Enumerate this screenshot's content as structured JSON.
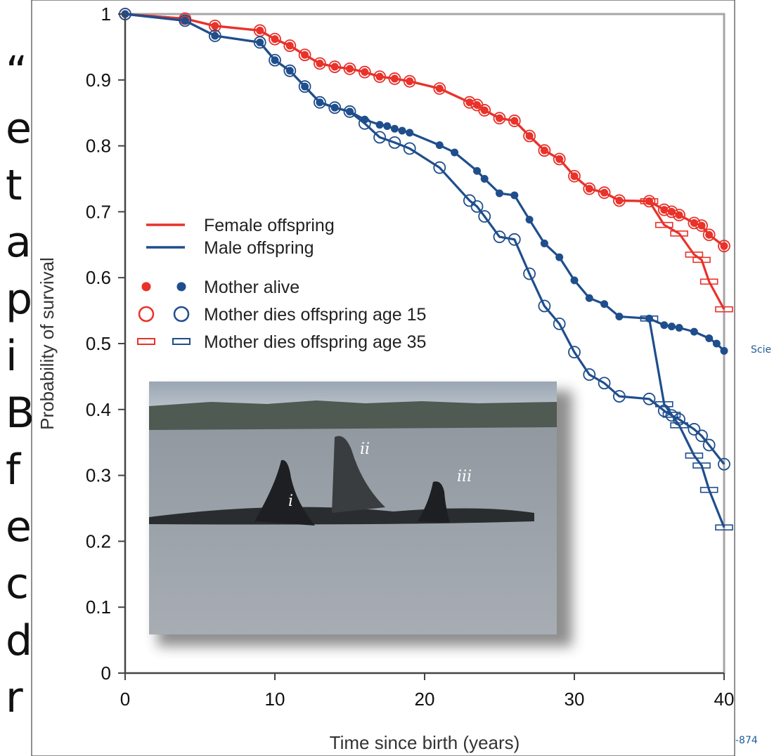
{
  "background": {
    "letters": [
      "“",
      "e",
      "t",
      "a",
      "p",
      "i",
      "B",
      "f",
      "e",
      "c",
      "d",
      "r"
    ],
    "side_note_top": "Scie",
    "side_note_bottom": "-874"
  },
  "colors": {
    "female": "#e8322a",
    "male": "#1f4e8c",
    "frame": "#a6a6a6"
  },
  "photo": {
    "labels": [
      "i",
      "ii",
      "iii"
    ]
  },
  "chart_data": {
    "type": "line",
    "xlabel": "Time since birth (years)",
    "ylabel": "Probability of survival",
    "xlim": [
      0,
      40
    ],
    "ylim": [
      0,
      1
    ],
    "xticks": [
      "0",
      "10",
      "20",
      "30",
      "40"
    ],
    "xtick_values": [
      0,
      10,
      20,
      30,
      40
    ],
    "yticks": [
      "0",
      "0.1",
      "0.2",
      "0.3",
      "0.4",
      "0.5",
      "0.6",
      "0.7",
      "0.8",
      "0.9",
      "1"
    ],
    "ytick_values": [
      0,
      0.1,
      0.2,
      0.3,
      0.4,
      0.5,
      0.6,
      0.7,
      0.8,
      0.9,
      1.0
    ],
    "legend": {
      "placement": "left",
      "lines": [
        {
          "label": "Female offspring",
          "color": "female"
        },
        {
          "label": "Male offspring",
          "color": "male"
        }
      ],
      "markers": [
        {
          "label": "Mother alive",
          "marker": "dot"
        },
        {
          "label": "Mother dies offspring age 15",
          "marker": "ring"
        },
        {
          "label": "Mother dies offspring age 35",
          "marker": "bar"
        }
      ]
    },
    "series": [
      {
        "sex": "female",
        "marker": "dot",
        "x": [
          0,
          4,
          6,
          9,
          10,
          11,
          12,
          13,
          14,
          15,
          16,
          17,
          18,
          19,
          21,
          23,
          23.5,
          24,
          25,
          26,
          27,
          28,
          29,
          30,
          31,
          32,
          33,
          35,
          36,
          36.5,
          37,
          38,
          38.5,
          39,
          40
        ],
        "y": [
          1.0,
          0.993,
          0.982,
          0.975,
          0.962,
          0.952,
          0.938,
          0.925,
          0.92,
          0.917,
          0.912,
          0.905,
          0.902,
          0.898,
          0.887,
          0.866,
          0.862,
          0.854,
          0.842,
          0.838,
          0.815,
          0.793,
          0.78,
          0.754,
          0.735,
          0.729,
          0.717,
          0.716,
          0.703,
          0.7,
          0.695,
          0.683,
          0.679,
          0.665,
          0.648
        ]
      },
      {
        "sex": "female",
        "marker": "ring",
        "x": [
          0,
          4,
          6,
          9,
          10,
          11,
          12,
          13,
          14,
          15,
          16,
          17,
          18,
          19,
          21,
          23,
          23.5,
          24,
          25,
          26,
          27,
          28,
          29,
          30,
          31,
          32,
          33,
          35,
          36,
          36.5,
          37,
          38,
          38.5,
          39,
          40
        ],
        "y": [
          1.0,
          0.993,
          0.982,
          0.975,
          0.962,
          0.952,
          0.938,
          0.925,
          0.92,
          0.917,
          0.912,
          0.905,
          0.902,
          0.898,
          0.887,
          0.866,
          0.862,
          0.854,
          0.842,
          0.838,
          0.815,
          0.793,
          0.78,
          0.754,
          0.735,
          0.729,
          0.717,
          0.716,
          0.703,
          0.7,
          0.695,
          0.683,
          0.679,
          0.665,
          0.648
        ]
      },
      {
        "sex": "female",
        "marker": "bar",
        "x": [
          35,
          36,
          37,
          38,
          38.5,
          39,
          40
        ],
        "y": [
          0.716,
          0.68,
          0.667,
          0.635,
          0.627,
          0.594,
          0.552
        ]
      },
      {
        "sex": "male",
        "marker": "dot",
        "x": [
          0,
          4,
          6,
          9,
          10,
          11,
          12,
          13,
          14,
          15,
          16,
          17,
          17.5,
          18,
          18.5,
          19,
          21,
          22,
          23.5,
          24,
          25,
          26,
          27,
          28,
          29,
          30,
          31,
          32,
          33,
          35,
          36,
          36.5,
          37,
          38,
          39,
          39.5,
          40
        ],
        "y": [
          1.0,
          0.99,
          0.967,
          0.957,
          0.93,
          0.914,
          0.89,
          0.866,
          0.858,
          0.852,
          0.84,
          0.832,
          0.83,
          0.826,
          0.823,
          0.82,
          0.801,
          0.79,
          0.762,
          0.75,
          0.728,
          0.725,
          0.688,
          0.652,
          0.631,
          0.596,
          0.569,
          0.56,
          0.541,
          0.538,
          0.528,
          0.526,
          0.524,
          0.518,
          0.508,
          0.5,
          0.489
        ]
      },
      {
        "sex": "male",
        "marker": "ring",
        "x": [
          0,
          4,
          6,
          9,
          10,
          11,
          12,
          13,
          14,
          15,
          16,
          17,
          18,
          19,
          21,
          23,
          23.5,
          24,
          25,
          26,
          27,
          28,
          29,
          30,
          31,
          32,
          33,
          35,
          36,
          36.5,
          37,
          38,
          38.5,
          39,
          40
        ],
        "y": [
          1.0,
          0.99,
          0.967,
          0.957,
          0.93,
          0.914,
          0.89,
          0.866,
          0.858,
          0.852,
          0.834,
          0.813,
          0.805,
          0.796,
          0.767,
          0.717,
          0.708,
          0.693,
          0.662,
          0.658,
          0.606,
          0.557,
          0.53,
          0.487,
          0.453,
          0.44,
          0.42,
          0.416,
          0.398,
          0.391,
          0.385,
          0.37,
          0.36,
          0.346,
          0.317
        ]
      },
      {
        "sex": "male",
        "marker": "bar",
        "x": [
          35,
          36,
          36.5,
          37,
          38,
          38.5,
          39,
          40
        ],
        "y": [
          0.538,
          0.408,
          0.392,
          0.376,
          0.33,
          0.315,
          0.278,
          0.221
        ]
      }
    ]
  }
}
